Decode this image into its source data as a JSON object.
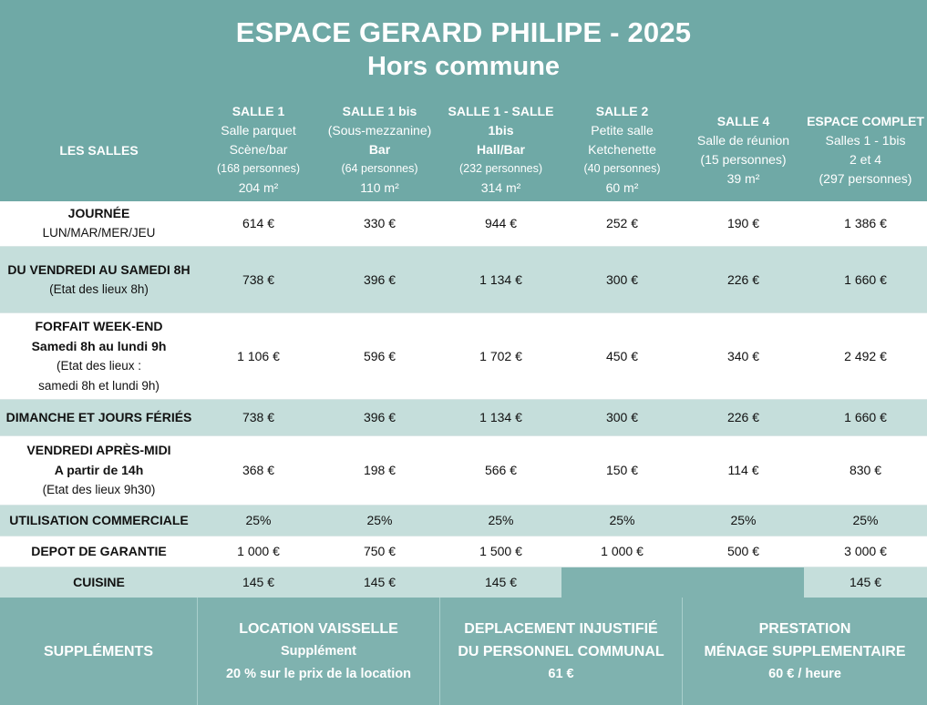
{
  "header": {
    "title": "ESPACE GERARD PHILIPE - 2025",
    "subtitle": "Hors commune"
  },
  "table": {
    "corner_label": "LES SALLES",
    "columns": [
      {
        "name": "SALLE 1",
        "lines": [
          "Salle parquet",
          "Scène/bar"
        ],
        "capacity": "(168 personnes)",
        "area": "204 m²"
      },
      {
        "name": "SALLE 1 bis",
        "lines": [
          "(Sous-mezzanine)",
          "Bar"
        ],
        "capacity": "(64 personnes)",
        "area": "110 m²"
      },
      {
        "name": "SALLE 1 - SALLE",
        "lines": [
          "1bis",
          "Hall/Bar"
        ],
        "capacity": "(232 personnes)",
        "area": "314 m²"
      },
      {
        "name": "SALLE 2",
        "lines": [
          "Petite salle",
          "Ketchenette"
        ],
        "capacity": "(40 personnes)",
        "area": "60 m²"
      },
      {
        "name": "SALLE 4",
        "lines": [
          "Salle de réunion",
          "(15 personnes)"
        ],
        "capacity": "",
        "area": "39 m²"
      },
      {
        "name": "ESPACE COMPLET",
        "lines": [
          "Salles 1 - 1bis",
          "2 et 4"
        ],
        "capacity": "",
        "area": "(297 personnes)"
      }
    ],
    "rows": [
      {
        "label": "JOURNÉE",
        "sub": [
          "LUN/MAR/MER/JEU"
        ],
        "values": [
          "614 €",
          "330 €",
          "944 €",
          "252 €",
          "190 €",
          "1 386 €"
        ]
      },
      {
        "label": "DU VENDREDI AU SAMEDI 8H",
        "sub": [
          "(Etat des lieux 8h)"
        ],
        "values": [
          "738 €",
          "396 €",
          "1 134 €",
          "300 €",
          "226 €",
          "1 660 €"
        ]
      },
      {
        "label": "FORFAIT WEEK-END",
        "bold_lines": [
          "Samedi 8h au lundi 9h"
        ],
        "sub": [
          "(Etat des lieux :",
          "samedi 8h et lundi 9h)"
        ],
        "values": [
          "1 106 €",
          "596 €",
          "1 702 €",
          "450 €",
          "340 €",
          "2 492 €"
        ]
      },
      {
        "label": "DIMANCHE ET JOURS FÉRIÉS",
        "sub": [],
        "values": [
          "738 €",
          "396 €",
          "1 134 €",
          "300 €",
          "226 €",
          "1 660 €"
        ]
      },
      {
        "label": "VENDREDI APRÈS-MIDI",
        "bold_lines": [
          "A partir de 14h"
        ],
        "sub": [
          "(Etat des lieux 9h30)"
        ],
        "values": [
          "368 €",
          "198 €",
          "566 €",
          "150 €",
          "114 €",
          "830 €"
        ]
      },
      {
        "label": "UTILISATION COMMERCIALE",
        "sub": [],
        "values": [
          "25%",
          "25%",
          "25%",
          "25%",
          "25%",
          "25%"
        ]
      },
      {
        "label": "DEPOT DE GARANTIE",
        "sub": [],
        "values": [
          "1 000 €",
          "750 €",
          "1 500 €",
          "1 000 €",
          "500 €",
          "3 000 €"
        ]
      },
      {
        "label": "CUISINE",
        "sub": [],
        "values": [
          "145 €",
          "145 €",
          "145 €",
          "",
          "",
          "145 €"
        ]
      }
    ]
  },
  "supplements": {
    "label": "SUPPLÉMENTS",
    "items": [
      {
        "title": "LOCATION VAISSELLE",
        "lines": [
          "Supplément",
          "20 % sur le prix de la location"
        ]
      },
      {
        "title": "DEPLACEMENT INJUSTIFIÉ",
        "lines": [
          "DU PERSONNEL COMMUNAL",
          "61 €"
        ]
      },
      {
        "title": "PRESTATION",
        "lines": [
          "MÉNAGE SUPPLEMENTAIRE",
          "60 € / heure"
        ]
      }
    ]
  },
  "colors": {
    "header_bg": "#6fa9a6",
    "band_teal": "#c5dedb",
    "footer_bg": "#7fb2af"
  }
}
